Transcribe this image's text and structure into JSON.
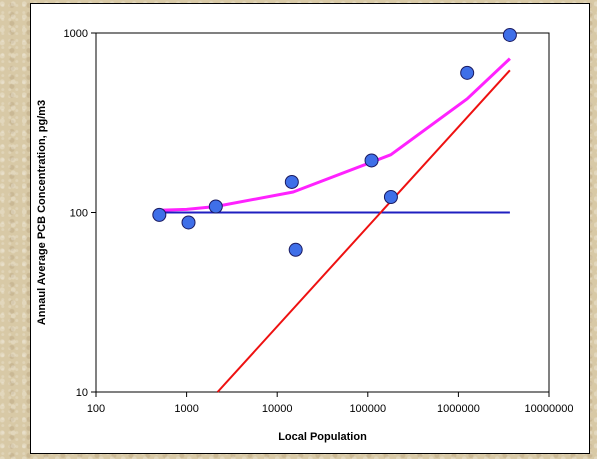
{
  "chart_data": {
    "type": "scatter",
    "title": "",
    "xlabel": "Local Population",
    "ylabel": "Annaul Average PCB Concentration, pg/m3",
    "xscale": "log",
    "yscale": "log",
    "xlim": [
      100,
      10000000
    ],
    "ylim": [
      10,
      1000
    ],
    "x_ticks": [
      100,
      1000,
      10000,
      100000,
      1000000,
      10000000
    ],
    "x_tick_labels": [
      "100",
      "1000",
      "10000",
      "100000",
      "1000000",
      "10000000"
    ],
    "y_ticks": [
      10,
      100,
      1000
    ],
    "y_tick_labels": [
      "10",
      "100",
      "1000"
    ],
    "grid": false,
    "legend": "none",
    "series": [
      {
        "type": "scatter",
        "color": "#3f6fe8",
        "points": [
          {
            "x": 500,
            "y": 97
          },
          {
            "x": 1050,
            "y": 88
          },
          {
            "x": 2100,
            "y": 108
          },
          {
            "x": 14500,
            "y": 148
          },
          {
            "x": 16000,
            "y": 62
          },
          {
            "x": 110000,
            "y": 195
          },
          {
            "x": 180000,
            "y": 122
          },
          {
            "x": 1250000,
            "y": 600
          },
          {
            "x": 3700000,
            "y": 975
          }
        ]
      },
      {
        "type": "line",
        "color": "#1f1fc0",
        "points": [
          {
            "x": 500,
            "y": 100
          },
          {
            "x": 3700000,
            "y": 100
          }
        ]
      },
      {
        "type": "line",
        "color": "#ee1111",
        "points": [
          {
            "x": 2200,
            "y": 10
          },
          {
            "x": 3700000,
            "y": 620
          }
        ]
      },
      {
        "type": "line",
        "color": "#ff22ff",
        "points": [
          {
            "x": 500,
            "y": 103
          },
          {
            "x": 1000,
            "y": 104
          },
          {
            "x": 2100,
            "y": 108
          },
          {
            "x": 15000,
            "y": 130
          },
          {
            "x": 180000,
            "y": 210
          },
          {
            "x": 1250000,
            "y": 430
          },
          {
            "x": 3700000,
            "y": 720
          }
        ]
      }
    ]
  }
}
